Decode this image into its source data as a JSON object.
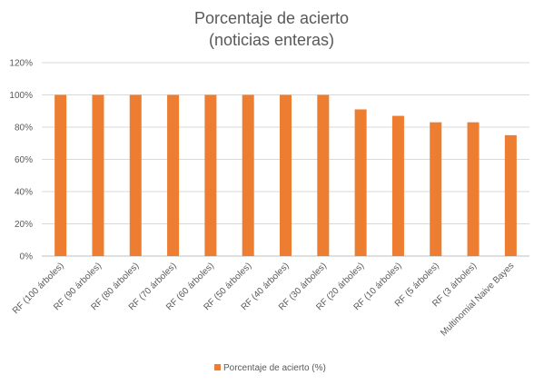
{
  "chart_data": {
    "type": "bar",
    "title": [
      "Porcentaje de acierto",
      "(noticias enteras)"
    ],
    "categories": [
      "RF (100 árboles)",
      "RF (90 árboles)",
      "RF (80 árboles)",
      "RF (70 árboles)",
      "RF (60 árboles)",
      "RF (50 árboles)",
      "RF (40 árboles)",
      "RF (30 árboles)",
      "RF (20 árboles)",
      "RF (10 árboles)",
      "RF (5 árboles)",
      "RF (3 árboles)",
      "Multinomial Naive Bayes"
    ],
    "series": [
      {
        "name": "Porcentaje de acierto (%)",
        "values": [
          100,
          100,
          100,
          100,
          100,
          100,
          100,
          100,
          91,
          87,
          83,
          83,
          75
        ],
        "color": "#ED7D31"
      }
    ],
    "ylim": [
      0,
      120
    ],
    "yticks": [
      "0%",
      "20%",
      "40%",
      "60%",
      "80%",
      "100%",
      "120%"
    ],
    "grid": true,
    "legend_position": "bottom",
    "colors": {
      "bar": "#ED7D31",
      "grid": "#D9D9D9",
      "text": "#595959",
      "axis": "#BFBFBF"
    }
  }
}
